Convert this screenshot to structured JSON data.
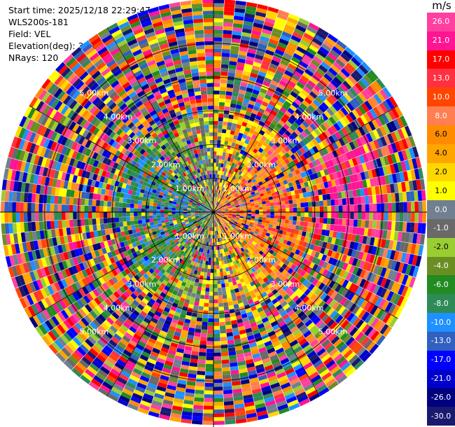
{
  "info": {
    "start_time": "Start time: 2025/12/18 22:29:47",
    "site": "WLS200s-181",
    "field": "Field: VEL",
    "elevation": "Elevation(deg): 35.00",
    "nrays": "NRays: 120"
  },
  "chart_data": {
    "type": "heatmap",
    "projection": "polar-ppi",
    "field": "VEL",
    "unit": "m/s",
    "n_rays": 120,
    "range_rings_km": [
      1,
      2,
      3,
      4,
      5
    ],
    "range_ring_labels": [
      "1.00km",
      "2.00km",
      "3.00km",
      "4.00km",
      "5.00km"
    ],
    "max_range_km": 6.3,
    "grid": true,
    "colorbar": {
      "unit": "m/s",
      "ticks": [
        "26.0",
        "21.0",
        "17.0",
        "13.0",
        "10.0",
        "8.0",
        "6.0",
        "4.0",
        "2.0",
        "1.0",
        "0.0",
        "-1.0",
        "-2.0",
        "-4.0",
        "-6.0",
        "-8.0",
        "-10.0",
        "-13.0",
        "-17.0",
        "-21.0",
        "-26.0",
        "-30.0"
      ],
      "colors": [
        "#ff40a0",
        "#ff1493",
        "#ff0000",
        "#ff3040",
        "#ff4500",
        "#ff7f50",
        "#ff8c00",
        "#ffa500",
        "#ffd700",
        "#ffff00",
        "#708090",
        "#696969",
        "#9acd32",
        "#6b8e23",
        "#228b22",
        "#2e8b57",
        "#1e90ff",
        "#3060c0",
        "#0000ff",
        "#0000cd",
        "#000080",
        "#191970"
      ]
    }
  }
}
